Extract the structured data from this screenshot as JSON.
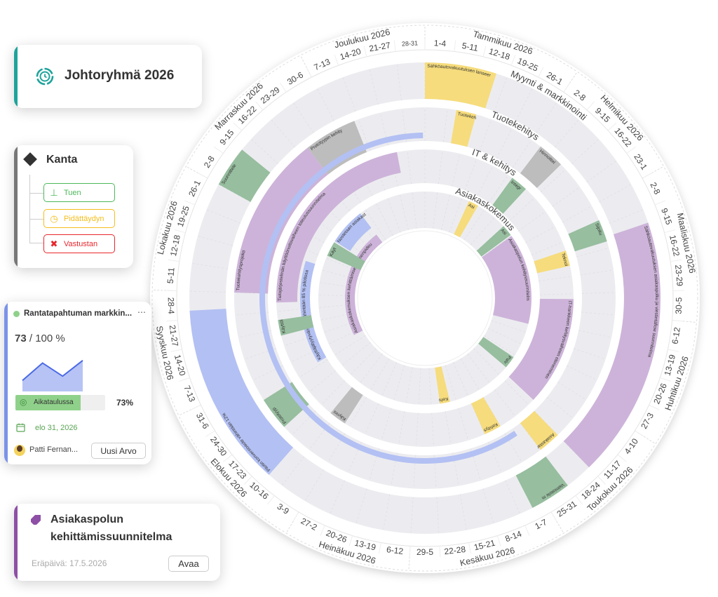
{
  "wheel": {
    "weeks": [
      "1-4",
      "5-11",
      "12-18",
      "19-25",
      "26-1",
      "2-8",
      "9-15",
      "16-22",
      "23-1",
      "2-8",
      "9-15",
      "16-22",
      "23-29",
      "30-5",
      "6-12",
      "13-19",
      "20-26",
      "27-3",
      "4-10",
      "11-17",
      "18-24",
      "25-31",
      "1-7",
      "8-14",
      "15-21",
      "22-28",
      "29-5",
      "6-12",
      "13-19",
      "20-26",
      "27-2",
      "3-9",
      "10-16",
      "17-23",
      "24-30",
      "31-6",
      "7-13",
      "14-20",
      "21-27",
      "28-4",
      "5-11",
      "12-18",
      "19-25",
      "26-1",
      "2-8",
      "9-15",
      "16-22",
      "23-29",
      "30-6",
      "7-13",
      "14-20",
      "21-27",
      "28-31"
    ],
    "months": [
      {
        "label": "Tammikuu 2026",
        "start": 0,
        "end": 5
      },
      {
        "label": "Helmikuu 2026",
        "start": 5,
        "end": 9
      },
      {
        "label": "Maaliskuu 2026",
        "start": 9,
        "end": 14
      },
      {
        "label": "Huhtikuu 2026",
        "start": 14,
        "end": 18
      },
      {
        "label": "Toukokuu 2026",
        "start": 18,
        "end": 22
      },
      {
        "label": "Kesäkuu 2026",
        "start": 22,
        "end": 27
      },
      {
        "label": "Heinäkuu 2026",
        "start": 27,
        "end": 31
      },
      {
        "label": "Elokuu 2026",
        "start": 31,
        "end": 36
      },
      {
        "label": "Syyskuu 2026",
        "start": 36,
        "end": 40
      },
      {
        "label": "Lokakuu 2026",
        "start": 40,
        "end": 44
      },
      {
        "label": "Marraskuu 2026",
        "start": 44,
        "end": 49
      },
      {
        "label": "Joulukuu 2026",
        "start": 49,
        "end": 53
      }
    ],
    "rings": [
      {
        "label": "Myynti & markkinointi"
      },
      {
        "label": "Tuotekehitys"
      },
      {
        "label": "IT & kehitys"
      },
      {
        "label": "Asiakaskokemus"
      }
    ],
    "colors": {
      "yellow": "#f6dc7c",
      "purple": "#cdb3d9",
      "green": "#97be9f",
      "blue": "#b3c0f3",
      "gray": "#bdbdbd",
      "ring": "#ececf0"
    },
    "events": [
      {
        "ring": 0,
        "start": 0,
        "end": 2.6,
        "color": "yellow",
        "label": "Sähköautovakuutuksen lanseer"
      },
      {
        "ring": 0,
        "start": 10.5,
        "end": 20,
        "color": "purple",
        "label": "Sähköautovakuutuksen asiakaspolku ja viestintäflow suunnitelma"
      },
      {
        "ring": 0,
        "start": 21,
        "end": 22.5,
        "color": "green",
        "label": "Valmistele m"
      },
      {
        "ring": 0,
        "start": 32.6,
        "end": 39.3,
        "color": "blue",
        "label": "Pilotin konversioaste vähintään 12%"
      },
      {
        "ring": 0,
        "start": 44,
        "end": 45.5,
        "color": "green",
        "label": "Suunnittele"
      },
      {
        "ring": 1,
        "start": 1.4,
        "end": 2.3,
        "color": "yellow",
        "label": "Tuotekeh"
      },
      {
        "ring": 1,
        "start": 5.5,
        "end": 6.7,
        "color": "gray",
        "label": "Hinnoittel"
      },
      {
        "ring": 1,
        "start": 9.7,
        "end": 10.7,
        "color": "green",
        "label": "Sijoitu"
      },
      {
        "ring": 1,
        "start": 20,
        "end": 21,
        "color": "yellow",
        "label": "Asiakastar"
      },
      {
        "ring": 1,
        "start": 33.5,
        "end": 35,
        "color": "green",
        "label": "Prototyyp"
      },
      {
        "ring": 1,
        "start": 40,
        "end": 47.4,
        "color": "purple",
        "label": "Tuotekehitysprojekti"
      },
      {
        "ring": 1,
        "start": 47.4,
        "end": 49.8,
        "color": "gray",
        "label": "Prototyypin kehity"
      },
      {
        "ring": 1,
        "start": 21.5,
        "end": 52.9,
        "color": "blue",
        "thin": true,
        "label": ""
      },
      {
        "ring": 2,
        "start": 5.3,
        "end": 6.3,
        "color": "green",
        "label": "Integr"
      },
      {
        "ring": 2,
        "start": 10.5,
        "end": 11.4,
        "color": "yellow",
        "label": "Teknol"
      },
      {
        "ring": 2,
        "start": 13.3,
        "end": 19.6,
        "color": "purple",
        "label": "IT-hankkeen kehitysvaiheen eteneminen"
      },
      {
        "ring": 2,
        "start": 22,
        "end": 23,
        "color": "yellow",
        "label": "Kehitys"
      },
      {
        "ring": 2,
        "start": 31.3,
        "end": 32.3,
        "color": "gray",
        "label": "Käynni"
      },
      {
        "ring": 2,
        "start": 35.2,
        "end": 42.3,
        "color": "blue",
        "inner": true,
        "label": "Käyttäjätyytyväisyys vähintään 85 % pilotissa"
      },
      {
        "ring": 2,
        "start": 37.6,
        "end": 38.5,
        "color": "green",
        "label": "Käyttöl"
      },
      {
        "ring": 2,
        "start": 39.5,
        "end": 51.4,
        "color": "purple",
        "outer": true,
        "label": "Tietojärjestelmän käyttöönottovaiheen toteutussuunnitelma"
      },
      {
        "ring": 3,
        "start": 3.6,
        "end": 4.4,
        "color": "yellow",
        "label": "Asi"
      },
      {
        "ring": 3,
        "start": 7,
        "end": 7.9,
        "color": "green",
        "label": "Asi"
      },
      {
        "ring": 3,
        "start": 8,
        "end": 15.3,
        "color": "purple",
        "label": "Asiakaspolun kehityssuunnitelm"
      },
      {
        "ring": 3,
        "start": 18.2,
        "end": 19.2,
        "color": "green",
        "label": "Palv"
      },
      {
        "ring": 3,
        "start": 24.5,
        "end": 25.3,
        "color": "yellow",
        "label": "Kehi"
      },
      {
        "ring": 3,
        "start": 35.7,
        "end": 47.5,
        "color": "purple",
        "inner": true,
        "label": "Asiakaskokemuksen kehittämisen toimenpideu"
      },
      {
        "ring": 3,
        "start": 43.2,
        "end": 44.4,
        "color": "green",
        "label": "Käyt"
      },
      {
        "ring": 3,
        "start": 44.5,
        "end": 47.5,
        "color": "blue",
        "outer": true,
        "label": "Nostetaan asiakast"
      }
    ]
  },
  "title_card": {
    "title": "Johtoryhmä 2026",
    "accent": "#1ea39b"
  },
  "vote_card": {
    "title": "Kanta",
    "options": [
      {
        "label": "Tuen",
        "color": "#4cb85a"
      },
      {
        "label": "Pidättäydyn",
        "color": "#f4bd1c"
      },
      {
        "label": "Vastustan",
        "color": "#e8262c"
      }
    ]
  },
  "goal_card": {
    "title": "Rantatapahtuman markkin...",
    "more": "⋯",
    "value": "73",
    "target": "/ 100 %",
    "trend": [
      30,
      78,
      42,
      85
    ],
    "status": "Aikataulussa",
    "progress": 73,
    "progress_label": "73%",
    "due": "elo 31, 2026",
    "owner": "Patti Fernan...",
    "action": "Uusi Arvo",
    "accent": "#7b93e8"
  },
  "task_card": {
    "title_line1": "Asiakaspolun",
    "title_line2": "kehittämissuunnitelma",
    "due": "Eräpäivä: 17.5.2026",
    "action": "Avaa",
    "accent": "#8e4fa6"
  }
}
